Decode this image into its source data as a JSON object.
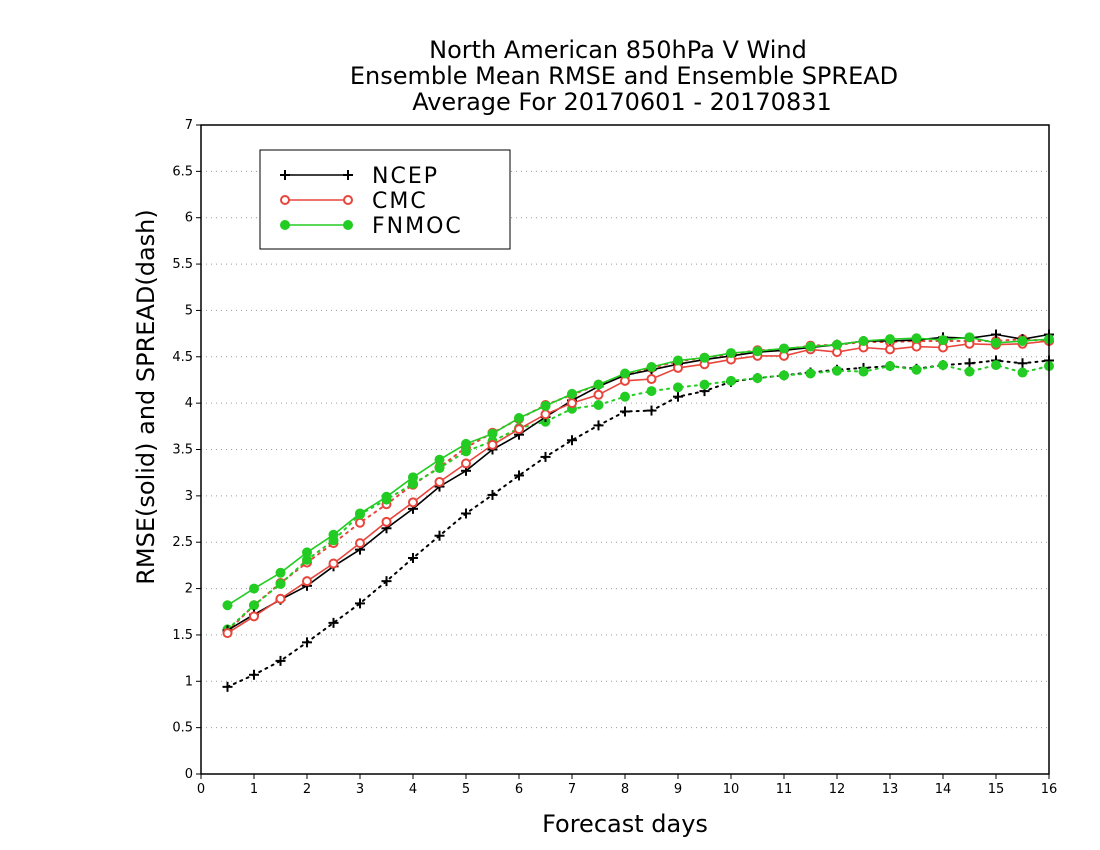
{
  "chart_data": {
    "type": "line",
    "title_lines": [
      "North American 850hPa V Wind",
      "Ensemble Mean RMSE and Ensemble SPREAD",
      "Average For 20170601 - 20170831"
    ],
    "xlabel": "Forecast days",
    "ylabel": "RMSE(solid) and SPREAD(dash)",
    "xlim": [
      0,
      16
    ],
    "ylim": [
      0,
      7
    ],
    "x_ticks": [
      "0",
      "1",
      "2",
      "3",
      "4",
      "5",
      "6",
      "7",
      "8",
      "9",
      "10",
      "11",
      "12",
      "13",
      "14",
      "15",
      "16"
    ],
    "y_ticks": [
      "0",
      "0.5",
      "1",
      "1.5",
      "2",
      "2.5",
      "3",
      "3.5",
      "4",
      "4.5",
      "5",
      "5.5",
      "6",
      "6.5",
      "7"
    ],
    "grid": true,
    "legend_position": "top-left",
    "x": [
      0.5,
      1,
      1.5,
      2,
      2.5,
      3,
      3.5,
      4,
      4.5,
      5,
      5.5,
      6,
      6.5,
      7,
      7.5,
      8,
      8.5,
      9,
      9.5,
      10,
      10.5,
      11,
      11.5,
      12,
      12.5,
      13,
      13.5,
      14,
      14.5,
      15,
      15.5,
      16
    ],
    "series": [
      {
        "name": "NCEP",
        "metric": "RMSE",
        "style": "solid",
        "marker": "plus",
        "color": "#000000",
        "values": [
          1.55,
          1.72,
          1.88,
          2.03,
          2.24,
          2.42,
          2.65,
          2.86,
          3.1,
          3.27,
          3.5,
          3.66,
          3.85,
          4.03,
          4.18,
          4.3,
          4.36,
          4.42,
          4.47,
          4.51,
          4.55,
          4.57,
          4.6,
          4.63,
          4.67,
          4.67,
          4.68,
          4.71,
          4.7,
          4.74,
          4.69,
          4.74
        ]
      },
      {
        "name": "NCEP",
        "metric": "SPREAD",
        "style": "dash",
        "marker": "plus",
        "color": "#000000",
        "values": [
          0.94,
          1.07,
          1.22,
          1.42,
          1.63,
          1.84,
          2.08,
          2.33,
          2.57,
          2.81,
          3.01,
          3.22,
          3.42,
          3.6,
          3.76,
          3.91,
          3.92,
          4.07,
          4.13,
          4.23,
          4.27,
          4.3,
          4.33,
          4.36,
          4.38,
          4.4,
          4.37,
          4.41,
          4.43,
          4.46,
          4.43,
          4.46
        ]
      },
      {
        "name": "CMC",
        "metric": "RMSE",
        "style": "solid",
        "marker": "open-circle",
        "color": "#e8453c",
        "values": [
          1.52,
          1.7,
          1.89,
          2.08,
          2.27,
          2.49,
          2.72,
          2.93,
          3.15,
          3.35,
          3.55,
          3.72,
          3.88,
          4.0,
          4.09,
          4.24,
          4.26,
          4.38,
          4.42,
          4.47,
          4.51,
          4.51,
          4.58,
          4.55,
          4.6,
          4.58,
          4.61,
          4.6,
          4.64,
          4.63,
          4.64,
          4.67
        ]
      },
      {
        "name": "CMC",
        "metric": "SPREAD",
        "style": "dash",
        "marker": "open-circle",
        "color": "#e8453c",
        "values": [
          1.54,
          1.82,
          2.06,
          2.28,
          2.49,
          2.71,
          2.91,
          3.12,
          3.31,
          3.52,
          3.68,
          3.83,
          3.98,
          4.09,
          4.2,
          4.3,
          4.38,
          4.45,
          4.49,
          4.53,
          4.57,
          4.58,
          4.62,
          4.63,
          4.66,
          4.66,
          4.67,
          4.67,
          4.67,
          4.67,
          4.69,
          4.67
        ]
      },
      {
        "name": "FNMOC",
        "metric": "RMSE",
        "style": "solid",
        "marker": "filled-circle",
        "color": "#22cc22",
        "values": [
          1.82,
          2.0,
          2.17,
          2.39,
          2.58,
          2.81,
          2.99,
          3.2,
          3.39,
          3.56,
          3.67,
          3.84,
          3.97,
          4.1,
          4.2,
          4.32,
          4.39,
          4.46,
          4.49,
          4.54,
          4.56,
          4.59,
          4.61,
          4.63,
          4.67,
          4.69,
          4.7,
          4.68,
          4.71,
          4.65,
          4.67,
          4.69
        ]
      },
      {
        "name": "FNMOC",
        "metric": "SPREAD",
        "style": "dash",
        "marker": "filled-circle",
        "color": "#22cc22",
        "values": [
          1.56,
          1.82,
          2.05,
          2.31,
          2.52,
          2.8,
          2.96,
          3.13,
          3.3,
          3.48,
          3.59,
          3.73,
          3.8,
          3.94,
          3.98,
          4.07,
          4.13,
          4.17,
          4.2,
          4.24,
          4.27,
          4.3,
          4.32,
          4.35,
          4.34,
          4.4,
          4.36,
          4.41,
          4.34,
          4.41,
          4.33,
          4.4
        ]
      }
    ],
    "legend": [
      {
        "label": "NCEP",
        "marker": "plus",
        "color": "#000000"
      },
      {
        "label": "CMC",
        "marker": "open-circle",
        "color": "#e8453c"
      },
      {
        "label": "FNMOC",
        "marker": "filled-circle",
        "color": "#22cc22"
      }
    ]
  }
}
